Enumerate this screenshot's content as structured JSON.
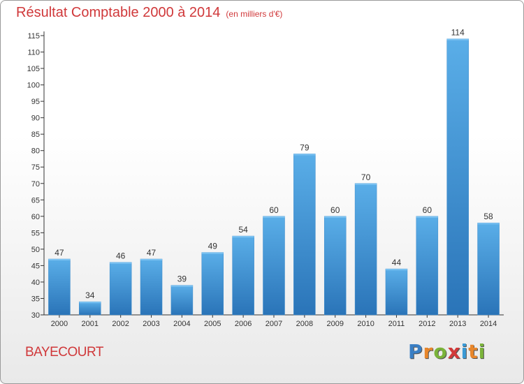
{
  "title": "Résultat Comptable 2000 à 2014",
  "subtitle": "(en milliers d'€)",
  "commune": "BAYECOURT",
  "logo": {
    "letters": [
      "P",
      "r",
      "o",
      "x",
      "i",
      "t",
      "i"
    ],
    "colors": [
      "#3a7fc4",
      "#e8862a",
      "#7ab33a",
      "#d23a3a",
      "#3a9ad6",
      "#e8862a",
      "#7ab33a"
    ]
  },
  "colors": {
    "bar": "#3f93d6",
    "title": "#d0383a"
  },
  "chart_data": {
    "type": "bar",
    "title": "Résultat Comptable 2000 à 2014",
    "categories": [
      "2000",
      "2001",
      "2002",
      "2003",
      "2004",
      "2005",
      "2006",
      "2007",
      "2008",
      "2009",
      "2010",
      "2011",
      "2012",
      "2013",
      "2014"
    ],
    "values": [
      47,
      34,
      46,
      47,
      39,
      49,
      54,
      60,
      79,
      60,
      70,
      44,
      60,
      114,
      58
    ],
    "ylim": [
      30,
      115
    ],
    "yticks": [
      30,
      35,
      40,
      45,
      50,
      55,
      60,
      65,
      70,
      75,
      80,
      85,
      90,
      95,
      100,
      105,
      110,
      115
    ],
    "grid": false,
    "legend": "none"
  }
}
